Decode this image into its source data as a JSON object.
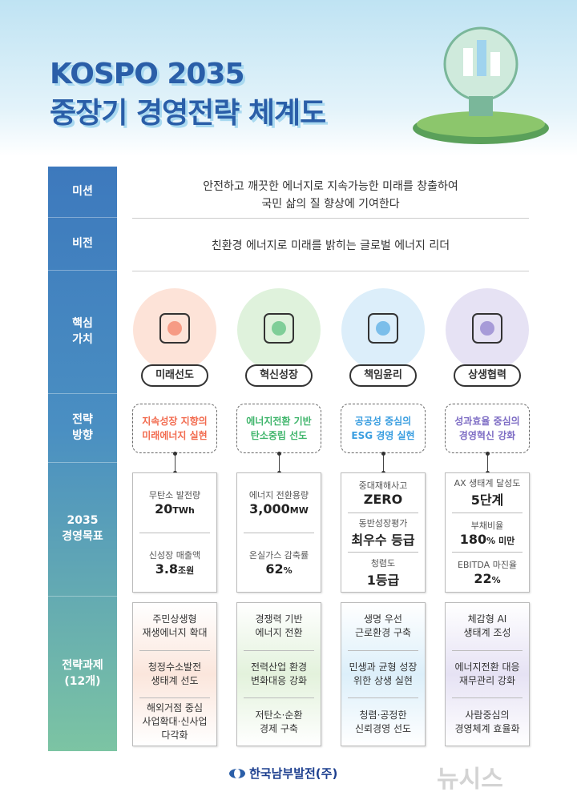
{
  "title_line1": "KOSPO 2035",
  "title_line2": "중장기 경영전략 체계도",
  "rows": {
    "mission": {
      "label": "미션",
      "text1": "안전하고 깨끗한 에너지로 지속가능한 미래를 창출하여",
      "text2": "국민 삶의 질 향상에 기여한다"
    },
    "vision": {
      "label": "비전",
      "text": "친환경 에너지로 미래를 밝히는 글로벌 에너지 리더"
    },
    "values_label": "핵심\n가치",
    "direction_label": "전략\n방향",
    "goals_label": "2035\n경영목표",
    "tasks_label": "전략과제\n(12개)"
  },
  "columns": [
    {
      "color": "#f26b4f",
      "circle": "#fde3d8",
      "icon": "head-leaf-icon",
      "value": "미래선도",
      "direction": "지속성장 지향의\n미래에너지 실현",
      "goals": [
        {
          "label": "무탄소 발전량",
          "value": "20",
          "unit": "TWh"
        },
        {
          "label": "신성장 매출액",
          "value": "3.8",
          "unit": "조원"
        }
      ],
      "tasks": [
        "주민상생형\n재생에너지 확대",
        "청정수소발전\n생태계 선도",
        "해외거점 중심\n사업확대·신사업\n다각화"
      ],
      "task_bg": "#fbe6dc"
    },
    {
      "color": "#3fb56b",
      "circle": "#dff2dc",
      "icon": "lightbulb-box-icon",
      "value": "혁신성장",
      "direction": "에너지전환 기반\n탄소중립 선도",
      "goals": [
        {
          "label": "에너지 전환용량",
          "value": "3,000",
          "unit": "MW"
        },
        {
          "label": "온실가스 감축률",
          "value": "62",
          "unit": "%"
        }
      ],
      "tasks": [
        "경쟁력 기반\n에너지 전환",
        "전력산업 환경\n변화대응 강화",
        "저탄소·순환\n경제 구축"
      ],
      "task_bg": "#e3f2dc"
    },
    {
      "color": "#3a9ee0",
      "circle": "#dceefa",
      "icon": "book-plant-icon",
      "value": "책임윤리",
      "direction": "공공성 중심의\nESG 경영 실현",
      "goals": [
        {
          "label": "중대재해사고",
          "value": "ZERO",
          "unit": ""
        },
        {
          "label": "동반성장평가",
          "value": "최우수 등급",
          "unit": ""
        },
        {
          "label": "청렴도",
          "value": "1등급",
          "unit": ""
        }
      ],
      "tasks": [
        "생명 우선\n근로환경 구축",
        "민생과 균형 성장\n위한 상생 실현",
        "청렴·공정한\n신뢰경영 선도"
      ],
      "task_bg": "#dcefFa"
    },
    {
      "color": "#7d6cc4",
      "circle": "#e6e2f4",
      "icon": "people-meeting-icon",
      "value": "상생협력",
      "direction": "성과효율 중심의\n경영혁신 강화",
      "goals": [
        {
          "label": "AX 생태계 달성도",
          "value": "5단계",
          "unit": ""
        },
        {
          "label": "부채비율",
          "value": "180",
          "unit": "% 미만"
        },
        {
          "label": "EBITDA 마진율",
          "value": "22",
          "unit": "%"
        }
      ],
      "tasks": [
        "체감형 AI\n생태계 조성",
        "에너지전환 대응\n재무관리 강화",
        "사람중심의\n경영체계 효율화"
      ],
      "task_bg": "#e6e2f4"
    }
  ],
  "footer": {
    "logo": "한국남부발전(주)",
    "watermark": "뉴시스"
  }
}
